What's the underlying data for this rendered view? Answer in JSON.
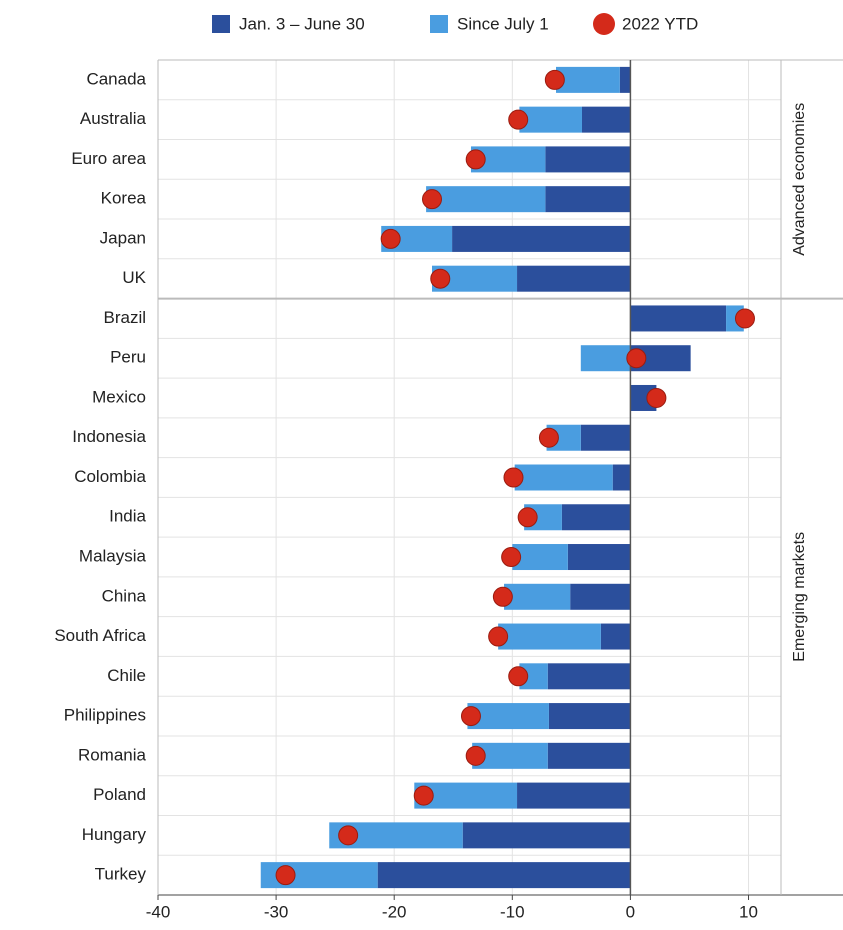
{
  "chart_data": {
    "type": "bar",
    "orientation": "horizontal",
    "stacked": true,
    "categories": [
      "Canada",
      "Australia",
      "Euro area",
      "Korea",
      "Japan",
      "UK",
      "Brazil",
      "Peru",
      "Mexico",
      "Indonesia",
      "Colombia",
      "India",
      "Malaysia",
      "China",
      "South Africa",
      "Chile",
      "Philippines",
      "Romania",
      "Poland",
      "Hungary",
      "Turkey"
    ],
    "series": [
      {
        "name": "Jan. 3 – June 30",
        "color": "#2b4f9c",
        "values": [
          -0.9,
          -4.1,
          -7.2,
          -7.2,
          -15.1,
          -9.6,
          8.1,
          5.1,
          2.2,
          -4.2,
          -1.5,
          -5.8,
          -5.3,
          -5.1,
          -2.5,
          -7.0,
          -6.9,
          -7.0,
          -9.6,
          -14.2,
          -21.4
        ]
      },
      {
        "name": "Since July 1",
        "color": "#4a9de0",
        "values": [
          -5.4,
          -5.3,
          -6.3,
          -10.1,
          -6.0,
          -7.2,
          1.5,
          -4.2,
          0,
          -2.9,
          -8.3,
          -3.2,
          -4.7,
          -5.6,
          -8.7,
          -2.4,
          -6.9,
          -6.4,
          -8.7,
          -11.3,
          -9.9
        ]
      },
      {
        "name": "2022 YTD",
        "type": "dot",
        "color": "#d42a1a",
        "values": [
          -6.4,
          -9.5,
          -13.1,
          -16.8,
          -20.3,
          -16.1,
          9.7,
          0.5,
          2.2,
          -6.9,
          -9.9,
          -8.7,
          -10.1,
          -10.8,
          -11.2,
          -9.5,
          -13.5,
          -13.1,
          -17.5,
          -23.9,
          -29.2
        ]
      }
    ],
    "groups": [
      {
        "label": "Advanced economies",
        "categories": [
          "Canada",
          "Australia",
          "Euro area",
          "Korea",
          "Japan",
          "UK"
        ]
      },
      {
        "label": "Emerging markets",
        "categories": [
          "Brazil",
          "Peru",
          "Mexico",
          "Indonesia",
          "Colombia",
          "India",
          "Malaysia",
          "China",
          "South Africa",
          "Chile",
          "Philippines",
          "Romania",
          "Poland",
          "Hungary",
          "Turkey"
        ]
      }
    ],
    "xlim": [
      -40,
      18
    ],
    "xticks": [
      -40,
      -30,
      -20,
      -10,
      0,
      10
    ],
    "grid": true,
    "legend": "top"
  }
}
